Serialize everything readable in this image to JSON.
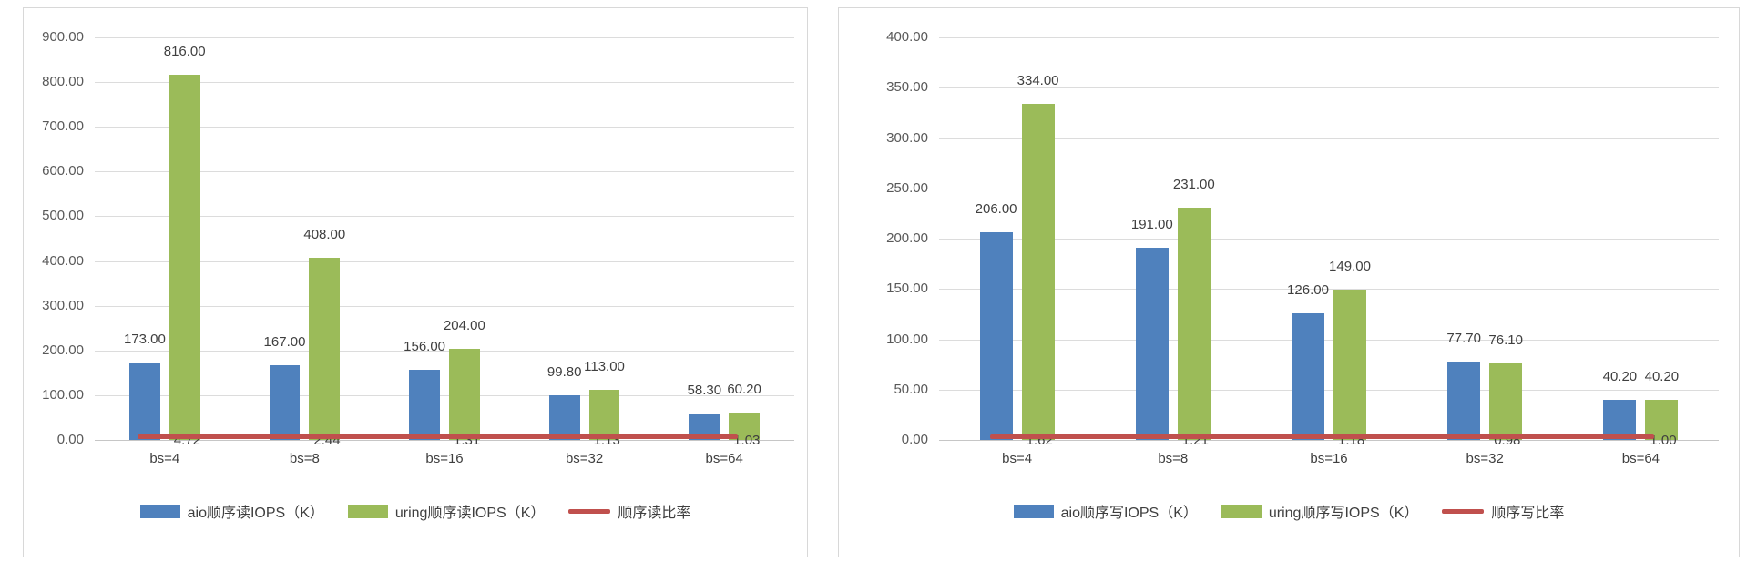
{
  "page": {
    "background": "#ffffff",
    "panel_border": "#d8d8d8",
    "gridline_color": "#dcdcdc",
    "axis_text_color": "#595959",
    "label_text_color": "#3f3f3f"
  },
  "chart_data": [
    {
      "id": "seq-read",
      "type": "bar",
      "title": "",
      "categories": [
        "bs=4",
        "bs=8",
        "bs=16",
        "bs=32",
        "bs=64"
      ],
      "series": [
        {
          "name": "aio顺序读IOPS（K）",
          "type": "bar",
          "color": "#4f81bd",
          "values": [
            173.0,
            167.0,
            156.0,
            99.8,
            58.3
          ],
          "labels": [
            "173.00",
            "167.00",
            "156.00",
            "99.80",
            "58.30"
          ]
        },
        {
          "name": "uring顺序读IOPS（K）",
          "type": "bar",
          "color": "#9bbb59",
          "values": [
            816.0,
            408.0,
            204.0,
            113.0,
            60.2
          ],
          "labels": [
            "816.00",
            "408.00",
            "204.00",
            "113.00",
            "60.20"
          ]
        },
        {
          "name": "顺序读比率",
          "type": "line",
          "color": "#c0504d",
          "values": [
            4.72,
            2.44,
            1.31,
            1.13,
            1.03
          ],
          "labels": [
            "4.72",
            "2.44",
            "1.31",
            "1.13",
            "1.03"
          ]
        }
      ],
      "xlabel": "",
      "ylabel": "",
      "ylim": [
        0,
        900
      ],
      "ytick_step": 100,
      "yticks": [
        "0.00",
        "100.00",
        "200.00",
        "300.00",
        "400.00",
        "500.00",
        "600.00",
        "700.00",
        "800.00",
        "900.00"
      ],
      "grid": true,
      "legend_position": "bottom"
    },
    {
      "id": "seq-write",
      "type": "bar",
      "title": "",
      "categories": [
        "bs=4",
        "bs=8",
        "bs=16",
        "bs=32",
        "bs=64"
      ],
      "series": [
        {
          "name": "aio顺序写IOPS（K）",
          "type": "bar",
          "color": "#4f81bd",
          "values": [
            206.0,
            191.0,
            126.0,
            77.7,
            40.2
          ],
          "labels": [
            "206.00",
            "191.00",
            "126.00",
            "77.70",
            "40.20"
          ]
        },
        {
          "name": "uring顺序写IOPS（K）",
          "type": "bar",
          "color": "#9bbb59",
          "values": [
            334.0,
            231.0,
            149.0,
            76.1,
            40.2
          ],
          "labels": [
            "334.00",
            "231.00",
            "149.00",
            "76.10",
            "40.20"
          ]
        },
        {
          "name": "顺序写比率",
          "type": "line",
          "color": "#c0504d",
          "values": [
            1.62,
            1.21,
            1.18,
            0.98,
            1.0
          ],
          "labels": [
            "1.62",
            "1.21",
            "1.18",
            "0.98",
            "1.00"
          ]
        }
      ],
      "xlabel": "",
      "ylabel": "",
      "ylim": [
        0,
        400
      ],
      "ytick_step": 50,
      "yticks": [
        "0.00",
        "50.00",
        "100.00",
        "150.00",
        "200.00",
        "250.00",
        "300.00",
        "350.00",
        "400.00"
      ],
      "grid": true,
      "legend_position": "bottom"
    }
  ]
}
